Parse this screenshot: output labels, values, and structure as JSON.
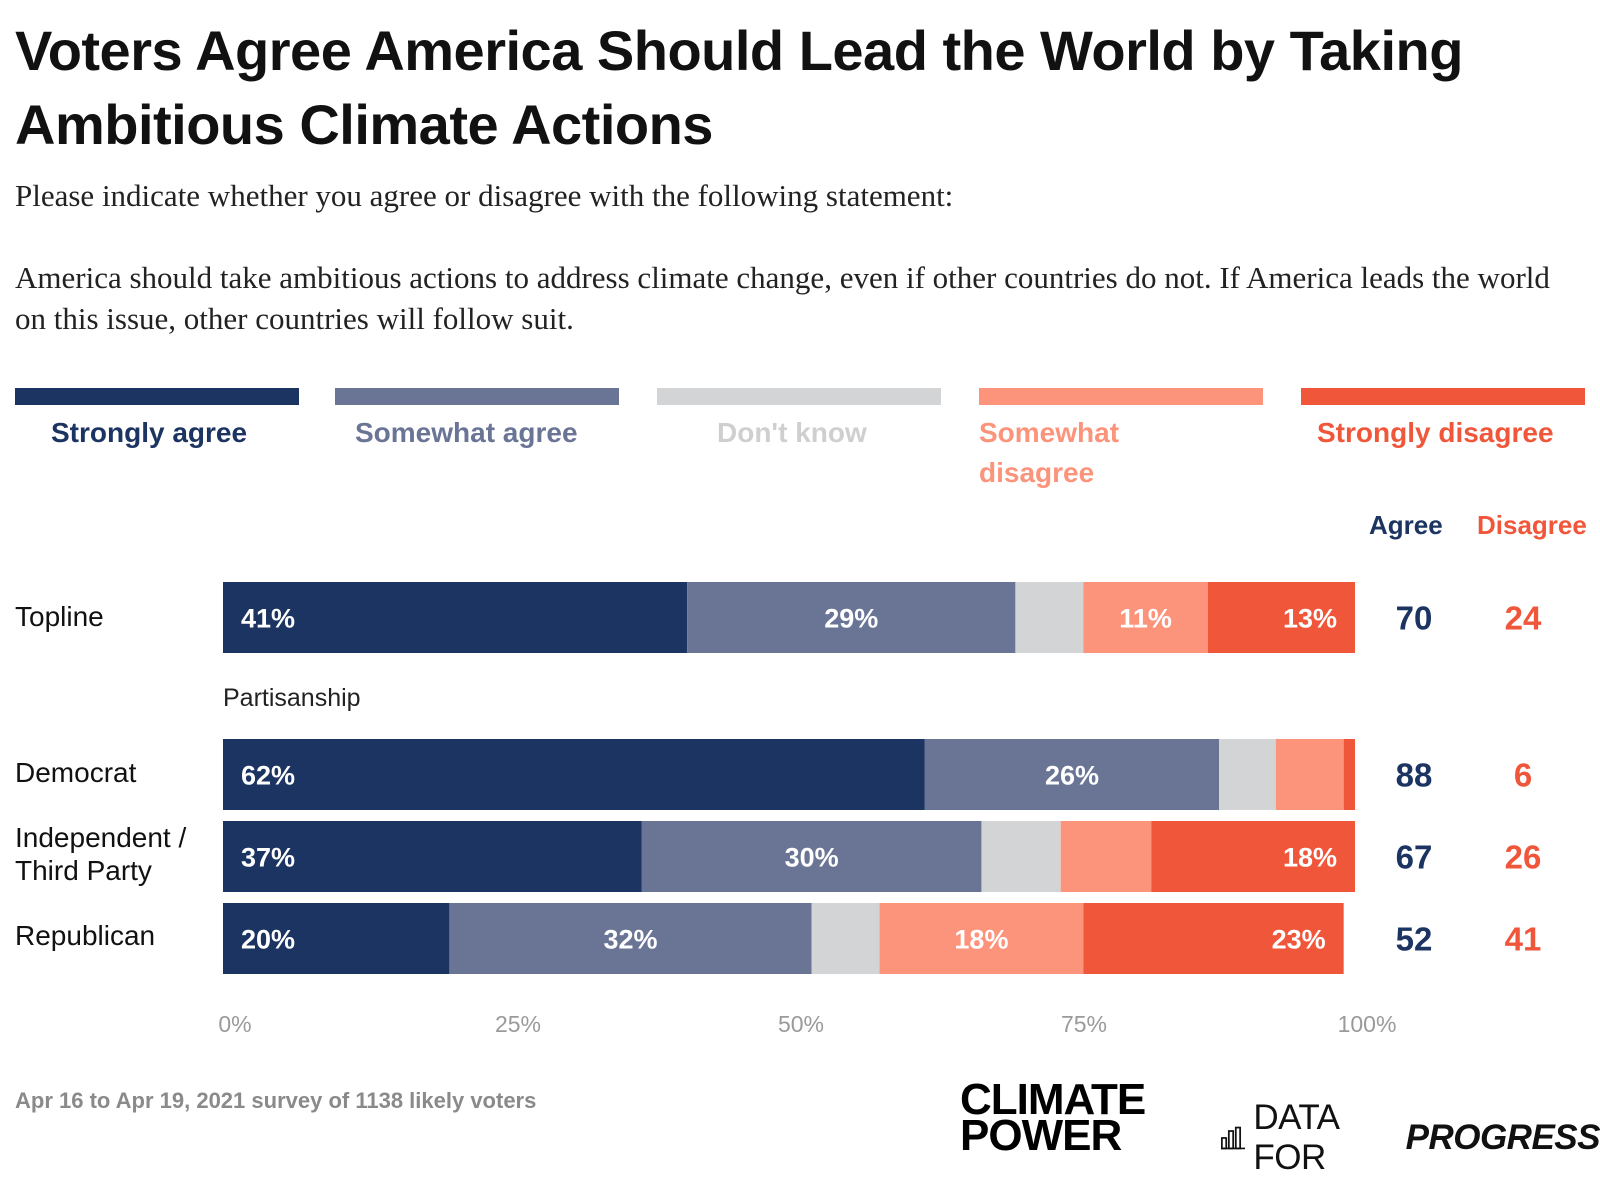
{
  "title": "Voters Agree America Should Lead the World by Taking Ambitious Climate Actions",
  "subtitle": "Please indicate whether you agree or disagree with the following statement:",
  "statement": "America should take ambitious actions to address climate change, even if other countries do not. If America leads the world on this issue, other countries will follow suit.",
  "legend": [
    {
      "label": "Strongly agree",
      "color": "#1c3461",
      "text_color": "#1c3461"
    },
    {
      "label": "Somewhat agree",
      "color": "#6a7596",
      "text_color": "#6a7596"
    },
    {
      "label": "Don't know",
      "color": "#d3d4d6",
      "text_color": "#cfcfcf"
    },
    {
      "label": "Somewhat disagree",
      "color": "#fc937b",
      "text_color": "#fc937b"
    },
    {
      "label": "Strongly disagree",
      "color": "#f0573a",
      "text_color": "#f0573a"
    }
  ],
  "columns": {
    "agree": "Agree",
    "disagree": "Disagree",
    "agree_color": "#1c3461",
    "disagree_color": "#f0573a"
  },
  "section_label": "Partisanship",
  "footer": "Apr 16 to Apr 19, 2021 survey of 1138 likely voters",
  "logos": {
    "climate_power_line1": "CLIMATE",
    "climate_power_line2": "POWER",
    "dfp_prefix": "DATA FOR",
    "dfp_emph": "PROGRESS"
  },
  "chart_data": {
    "type": "bar",
    "orientation": "horizontal",
    "stacked": true,
    "categories": [
      "Topline",
      "Democrat",
      "Independent / Third Party",
      "Republican"
    ],
    "series": [
      {
        "name": "Strongly agree",
        "values": [
          41,
          62,
          37,
          20
        ],
        "labels": [
          "41%",
          "62%",
          "37%",
          "20%"
        ]
      },
      {
        "name": "Somewhat agree",
        "values": [
          29,
          26,
          30,
          32
        ],
        "labels": [
          "29%",
          "26%",
          "30%",
          "32%"
        ]
      },
      {
        "name": "Don't know",
        "values": [
          6,
          5,
          7,
          6
        ],
        "labels": [
          "",
          "",
          "",
          ""
        ]
      },
      {
        "name": "Somewhat disagree",
        "values": [
          11,
          6,
          8,
          18
        ],
        "labels": [
          "11%",
          "",
          "",
          "18%"
        ]
      },
      {
        "name": "Strongly disagree",
        "values": [
          13,
          1,
          18,
          23
        ],
        "labels": [
          "13%",
          "",
          "18%",
          "23%"
        ]
      }
    ],
    "agree_totals": [
      "70",
      "88",
      "67",
      "52"
    ],
    "disagree_totals": [
      "24",
      "6",
      "26",
      "41"
    ],
    "xlim": [
      0,
      100
    ],
    "xticks": [
      "0%",
      "25%",
      "50%",
      "75%",
      "100%"
    ],
    "xlabel": "",
    "ylabel": ""
  }
}
